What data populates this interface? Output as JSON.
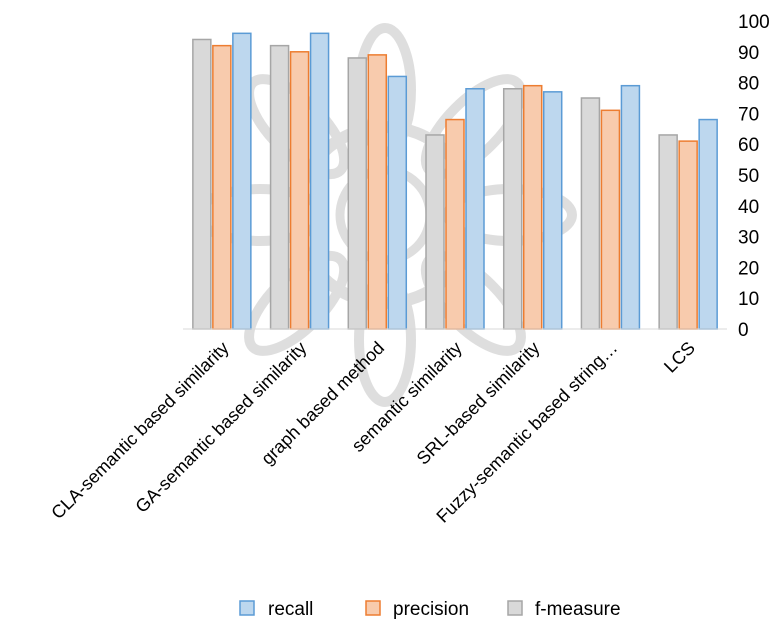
{
  "chart_data": {
    "type": "bar",
    "categories": [
      "CLA-semantic based similarity",
      "GA-semantic based similarity",
      "graph based method",
      "semantic similarity",
      "SRL-based similarity",
      "Fuzzy-semantic based string…",
      "LCS"
    ],
    "series": [
      {
        "name": "f-measure",
        "color": "#d9d9d9",
        "stroke": "#a6a6a6",
        "values": [
          94,
          92,
          88,
          63,
          78,
          75,
          63
        ]
      },
      {
        "name": "precision",
        "color": "#f8cbad",
        "stroke": "#ed7d31",
        "values": [
          92,
          90,
          89,
          68,
          79,
          71,
          61
        ]
      },
      {
        "name": "recall",
        "color": "#bdd7ee",
        "stroke": "#5b9bd5",
        "values": [
          96,
          96,
          82,
          78,
          77,
          79,
          68
        ]
      }
    ],
    "legend_order": [
      "recall",
      "precision",
      "f-measure"
    ],
    "yticks": [
      "0",
      "10",
      "20",
      "30",
      "40",
      "50",
      "60",
      "70",
      "80",
      "90",
      "100"
    ],
    "ylim": [
      0,
      100
    ],
    "y_axis_side": "right",
    "legend_position": "bottom",
    "grid": false
  }
}
